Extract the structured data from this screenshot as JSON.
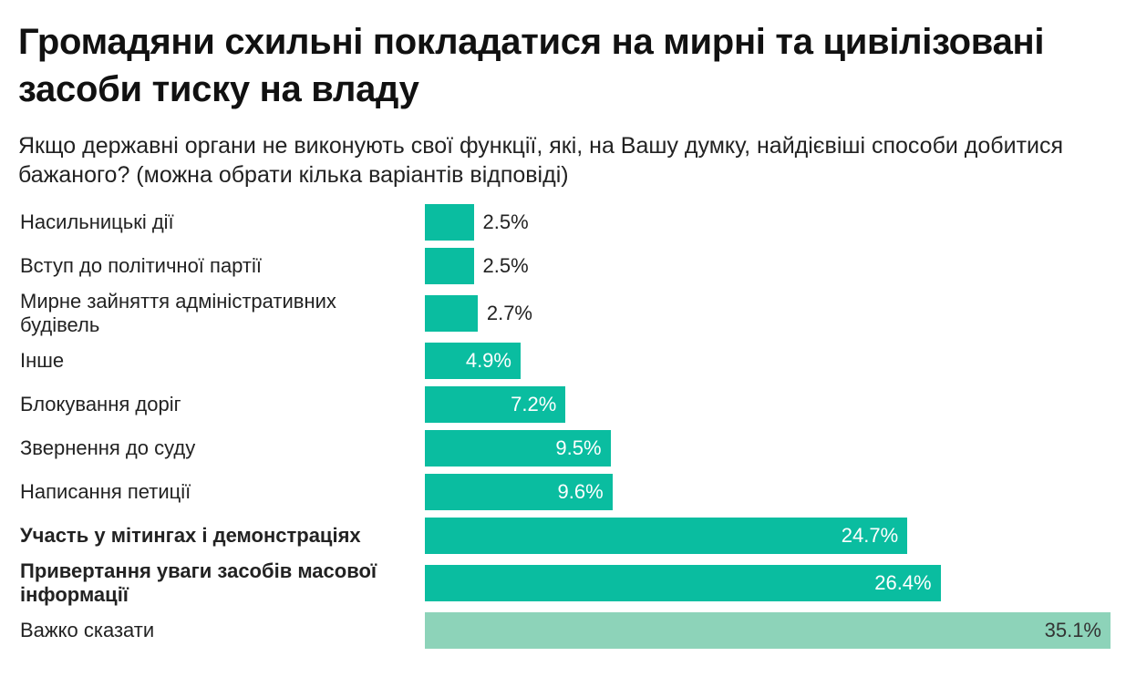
{
  "title": "Громадяни схильні покладатися на мирні та цивілізовані засоби тиску на владу",
  "subtitle": "Якщо державні органи не виконують свої функції, які, на Вашу думку, найдієвіші способи добитися бажаного? (можна обрати кілька варіантів відповіді)",
  "chart_data": {
    "type": "bar",
    "orientation": "horizontal",
    "unit": "%",
    "categories": [
      "Насильницькі дії",
      "Вступ до політичної партії",
      "Мирне зайняття адміністративних будівель",
      "Інше",
      "Блокування доріг",
      "Звернення до суду",
      "Написання петиції",
      "Участь у мітингах і демонстраціях",
      "Привертання уваги засобів масової інформації",
      "Важко сказати"
    ],
    "values": [
      2.5,
      2.5,
      2.7,
      4.9,
      7.2,
      9.5,
      9.6,
      24.7,
      26.4,
      35.1
    ],
    "labels": [
      "2.5%",
      "2.5%",
      "2.7%",
      "4.9%",
      "7.2%",
      "9.5%",
      "9.6%",
      "24.7%",
      "26.4%",
      "35.1%"
    ],
    "bold": [
      false,
      false,
      false,
      false,
      false,
      false,
      false,
      true,
      true,
      false
    ],
    "xlim": [
      0,
      35.1
    ],
    "colors": {
      "main": "#0abda0",
      "dont_know": "#8dd3b9"
    }
  }
}
